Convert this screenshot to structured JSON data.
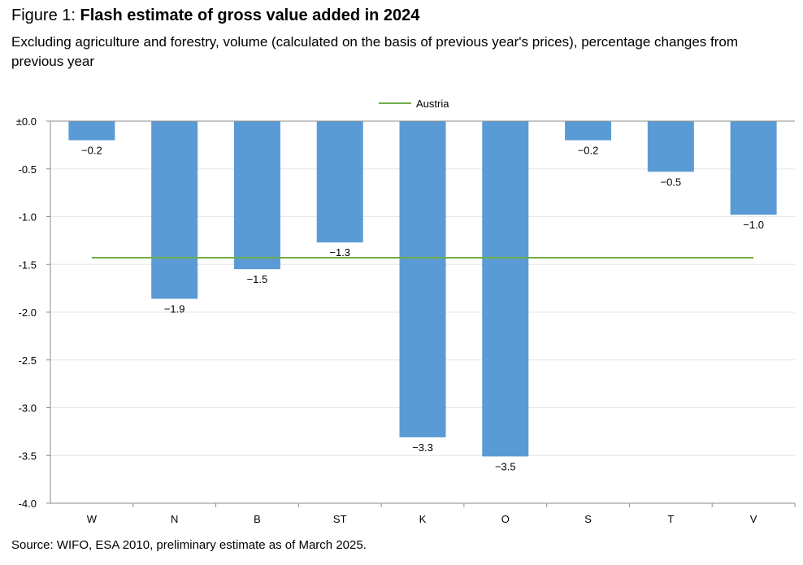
{
  "header": {
    "figure_prefix": "Figure 1: ",
    "title": "Flash estimate of gross value added in 2024",
    "subtitle": "Excluding agriculture and forestry, volume (calculated on the basis of previous year's prices), percentage changes from previous year"
  },
  "footer": {
    "source": "Source: WIFO, ESA 2010, preliminary estimate as of March 2025."
  },
  "chart_data": {
    "type": "bar",
    "categories": [
      "W",
      "N",
      "B",
      "ST",
      "K",
      "O",
      "S",
      "T",
      "V"
    ],
    "series": [
      {
        "values": [
          -0.2,
          -1.86,
          -1.55,
          -1.27,
          -3.31,
          -3.51,
          -0.2,
          -0.53,
          -0.98
        ],
        "color": "#5b9bd5"
      }
    ],
    "data_labels": [
      "−0.2",
      "−1.9",
      "−1.5",
      "−1.3",
      "−3.3",
      "−3.5",
      "−0.2",
      "−0.5",
      "−1.0"
    ],
    "reference_line": {
      "name": "Austria",
      "value": -1.43,
      "color": "#70ad47"
    },
    "ylim": [
      -4.0,
      0.0
    ],
    "y_ticks": [
      0.0,
      -0.5,
      -1.0,
      -1.5,
      -2.0,
      -2.5,
      -3.0,
      -3.5,
      -4.0
    ],
    "y_tick_labels": [
      "±0.0",
      "-0.5",
      "-1.0",
      "-1.5",
      "-2.0",
      "-2.5",
      "-3.0",
      "-3.5",
      "-4.0"
    ],
    "grid": true,
    "legend_position": "top-center",
    "colors": {
      "grid": "#e6e6e6",
      "axis": "#8c8c8c"
    }
  }
}
